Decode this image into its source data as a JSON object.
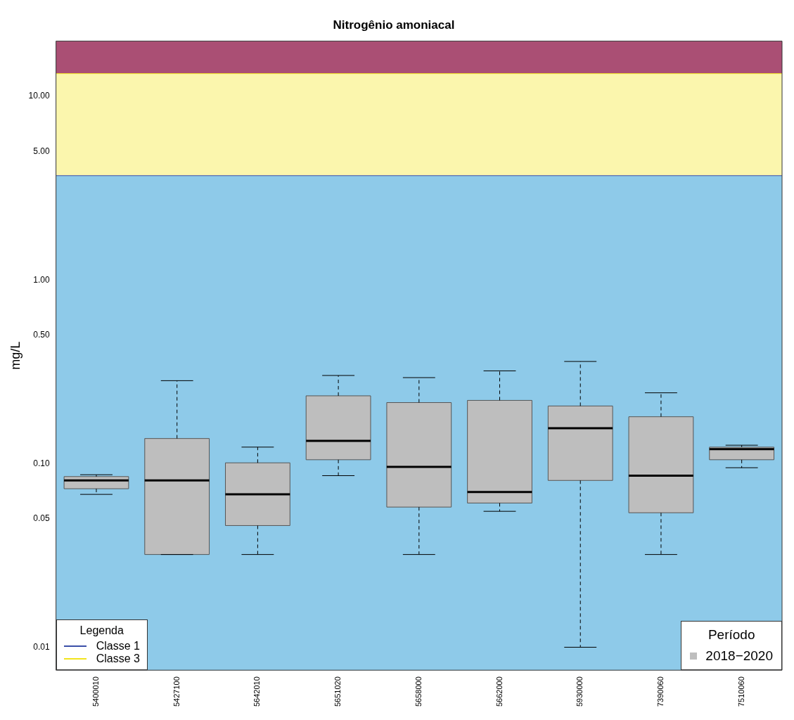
{
  "chart_data": {
    "type": "box",
    "title": "Nitrogênio amoniacal",
    "ylabel": "mg/L",
    "legend_title": "Período",
    "categories": [
      "5400010",
      "5427100",
      "5642010",
      "5651020",
      "5658000",
      "5662000",
      "5930000",
      "7390060",
      "7510060"
    ],
    "series": [
      {
        "name": "2018−2020",
        "color": "#bebebe",
        "boxes": [
          {
            "low": 0.068,
            "q1": 0.073,
            "median": 0.081,
            "q3": 0.085,
            "high": 0.087
          },
          {
            "low": 0.032,
            "q1": 0.032,
            "median": 0.081,
            "q3": 0.137,
            "high": 0.283
          },
          {
            "low": 0.032,
            "q1": 0.046,
            "median": 0.068,
            "q3": 0.101,
            "high": 0.123
          },
          {
            "low": 0.086,
            "q1": 0.105,
            "median": 0.133,
            "q3": 0.234,
            "high": 0.302
          },
          {
            "low": 0.032,
            "q1": 0.058,
            "median": 0.096,
            "q3": 0.215,
            "high": 0.294
          },
          {
            "low": 0.055,
            "q1": 0.061,
            "median": 0.07,
            "q3": 0.221,
            "high": 0.32
          },
          {
            "low": 0.01,
            "q1": 0.081,
            "median": 0.156,
            "q3": 0.206,
            "high": 0.36
          },
          {
            "low": 0.032,
            "q1": 0.054,
            "median": 0.086,
            "q3": 0.18,
            "high": 0.243
          },
          {
            "low": 0.095,
            "q1": 0.105,
            "median": 0.12,
            "q3": 0.123,
            "high": 0.126
          }
        ]
      }
    ],
    "ylim": [
      0.0075,
      20
    ],
    "log": true,
    "yticks": [
      {
        "value": 0.01,
        "label": "0.01"
      },
      {
        "value": 0.05,
        "label": "0.05"
      },
      {
        "value": 0.1,
        "label": "0.10"
      },
      {
        "value": 0.5,
        "label": "0.50"
      },
      {
        "value": 1,
        "label": "1.00"
      },
      {
        "value": 5,
        "label": "5.00"
      },
      {
        "value": 10,
        "label": "10.00"
      }
    ],
    "bands": [
      {
        "axis": "y",
        "from": 0.0075,
        "to": 3.7,
        "color": "#8ecae9"
      },
      {
        "axis": "y",
        "from": 3.7,
        "to": 13.3,
        "color": "#fbf6ad"
      },
      {
        "axis": "y",
        "from": 13.3,
        "to": 20,
        "color": "#aa4f74"
      }
    ],
    "ref_lines": [
      {
        "axis": "y",
        "value": 3.7,
        "label": "Classe 1",
        "color": "#3b4fa8"
      },
      {
        "axis": "y",
        "value": 13.3,
        "label": "Classe 3",
        "color": "#f2e41c"
      }
    ],
    "annotations": [
      "Legenda"
    ],
    "grid": false,
    "legend": "bottom right"
  }
}
